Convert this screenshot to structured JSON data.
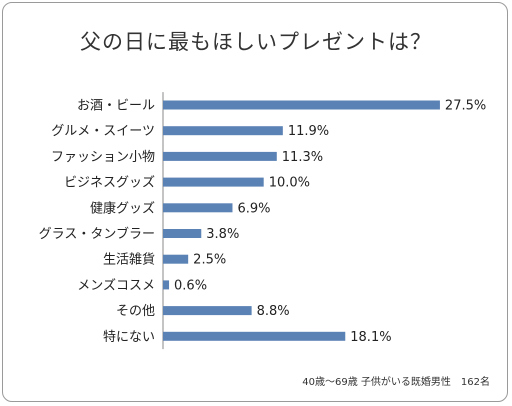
{
  "chart_data": {
    "type": "bar",
    "orientation": "horizontal",
    "title": "父の日に最もほしいプレゼントは？",
    "categories": [
      "お酒・ビール",
      "グルメ・スイーツ",
      "ファッション小物",
      "ビジネスグッズ",
      "健康グッズ",
      "グラス・タンブラー",
      "生活雑貨",
      "メンズコスメ",
      "その他",
      "特にない"
    ],
    "values": [
      27.5,
      11.9,
      11.3,
      10.0,
      6.9,
      3.8,
      2.5,
      0.6,
      8.8,
      18.1
    ],
    "value_labels": [
      "27.5%",
      "11.9%",
      "11.3%",
      "10.0%",
      "6.9%",
      "3.8%",
      "2.5%",
      "0.6%",
      "8.8%",
      "18.1%"
    ],
    "unit": "%",
    "xlim": [
      0,
      30
    ],
    "grid": false,
    "bar_color": "#5b82b5"
  },
  "footnote": "40歳〜69歳 子供がいる既婚男性　162名"
}
